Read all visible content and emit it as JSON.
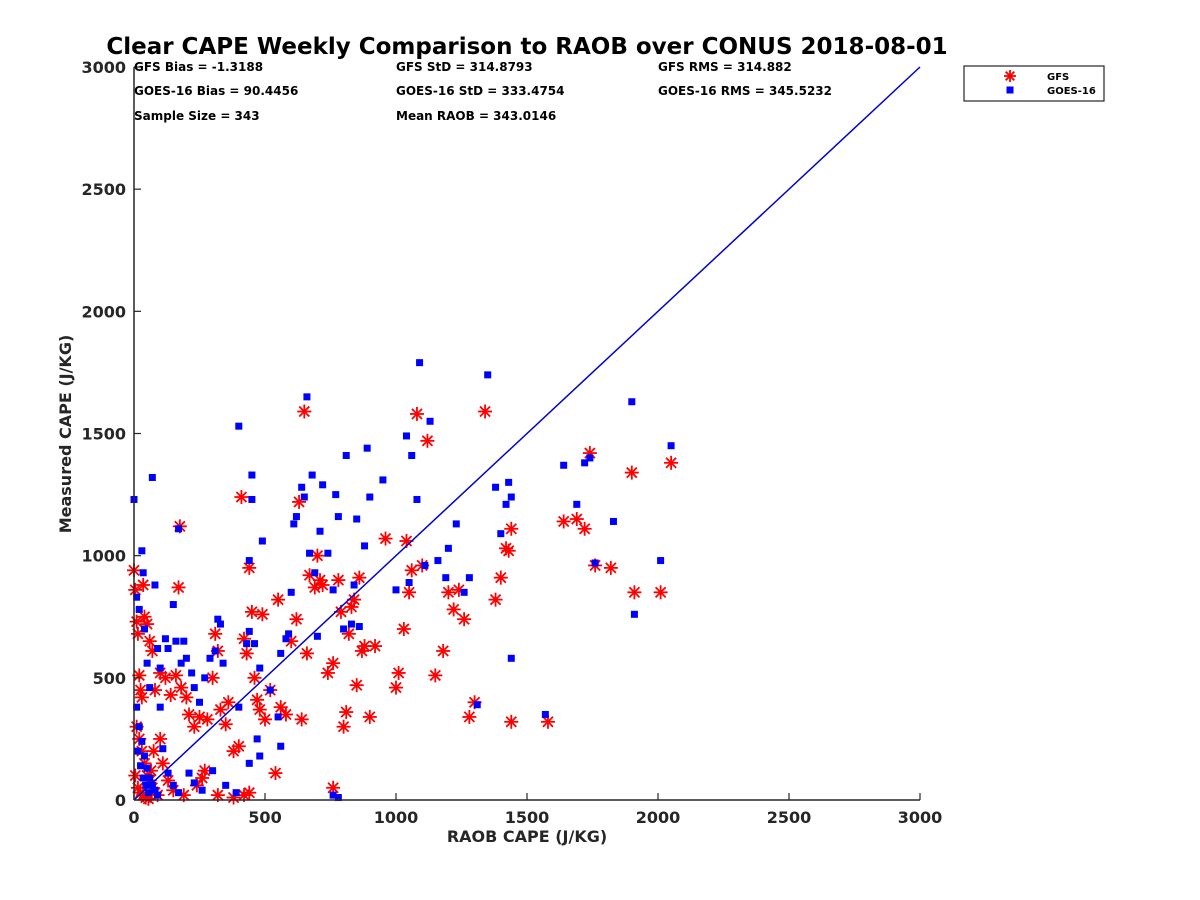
{
  "chart_data": {
    "type": "scatter",
    "title": "Clear CAPE Weekly Comparison to RAOB over CONUS 2018-08-01",
    "xlabel": "RAOB CAPE (J/KG)",
    "ylabel": "Measured CAPE (J/KG)",
    "xlim": [
      0,
      3000
    ],
    "ylim": [
      0,
      3000
    ],
    "xticks": [
      "0",
      "500",
      "1000",
      "1500",
      "2000",
      "2500",
      "3000"
    ],
    "yticks": [
      "0",
      "500",
      "1000",
      "1500",
      "2000",
      "2500",
      "3000"
    ],
    "grid": false,
    "legend_position": "top-right",
    "stats": [
      [
        "GFS Bias = -1.3188",
        "GFS StD = 314.8793",
        "GFS RMS = 314.882"
      ],
      [
        "GOES-16 Bias = 90.4456",
        "GOES-16 StD = 333.4754",
        "GOES-16 RMS = 345.5232"
      ],
      [
        "Sample Size = 343",
        "Mean RAOB = 343.0146",
        ""
      ]
    ],
    "reference_line": {
      "x": [
        0,
        3000
      ],
      "y": [
        0,
        3000
      ],
      "color": "#0000cc"
    },
    "series": [
      {
        "name": "GFS",
        "marker": "asterisk",
        "color": "#ff0000",
        "points": [
          [
            0,
            940
          ],
          [
            5,
            860
          ],
          [
            10,
            730
          ],
          [
            15,
            680
          ],
          [
            20,
            510
          ],
          [
            25,
            450
          ],
          [
            30,
            420
          ],
          [
            35,
            880
          ],
          [
            40,
            750
          ],
          [
            50,
            720
          ],
          [
            60,
            650
          ],
          [
            70,
            610
          ],
          [
            80,
            450
          ],
          [
            100,
            520
          ],
          [
            120,
            500
          ],
          [
            140,
            430
          ],
          [
            160,
            510
          ],
          [
            170,
            870
          ],
          [
            175,
            1120
          ],
          [
            180,
            460
          ],
          [
            200,
            420
          ],
          [
            210,
            350
          ],
          [
            230,
            300
          ],
          [
            250,
            340
          ],
          [
            270,
            120
          ],
          [
            280,
            330
          ],
          [
            300,
            500
          ],
          [
            310,
            680
          ],
          [
            320,
            610
          ],
          [
            330,
            370
          ],
          [
            350,
            310
          ],
          [
            360,
            400
          ],
          [
            380,
            200
          ],
          [
            400,
            220
          ],
          [
            410,
            1240
          ],
          [
            420,
            660
          ],
          [
            430,
            600
          ],
          [
            440,
            950
          ],
          [
            450,
            770
          ],
          [
            460,
            500
          ],
          [
            470,
            410
          ],
          [
            480,
            370
          ],
          [
            490,
            760
          ],
          [
            500,
            330
          ],
          [
            520,
            450
          ],
          [
            540,
            110
          ],
          [
            550,
            820
          ],
          [
            560,
            380
          ],
          [
            580,
            350
          ],
          [
            600,
            650
          ],
          [
            620,
            740
          ],
          [
            630,
            1220
          ],
          [
            640,
            330
          ],
          [
            650,
            1590
          ],
          [
            660,
            600
          ],
          [
            670,
            920
          ],
          [
            690,
            870
          ],
          [
            700,
            1000
          ],
          [
            710,
            900
          ],
          [
            720,
            880
          ],
          [
            740,
            520
          ],
          [
            760,
            560
          ],
          [
            780,
            900
          ],
          [
            790,
            770
          ],
          [
            800,
            300
          ],
          [
            810,
            360
          ],
          [
            820,
            680
          ],
          [
            830,
            790
          ],
          [
            840,
            820
          ],
          [
            850,
            470
          ],
          [
            860,
            910
          ],
          [
            870,
            610
          ],
          [
            880,
            630
          ],
          [
            900,
            340
          ],
          [
            920,
            630
          ],
          [
            960,
            1070
          ],
          [
            1000,
            460
          ],
          [
            1010,
            520
          ],
          [
            1030,
            700
          ],
          [
            1040,
            1060
          ],
          [
            1050,
            850
          ],
          [
            1060,
            940
          ],
          [
            1080,
            1580
          ],
          [
            1100,
            960
          ],
          [
            1120,
            1470
          ],
          [
            1150,
            510
          ],
          [
            1180,
            610
          ],
          [
            1200,
            850
          ],
          [
            1220,
            780
          ],
          [
            1240,
            860
          ],
          [
            1260,
            740
          ],
          [
            1280,
            340
          ],
          [
            1300,
            400
          ],
          [
            1340,
            1590
          ],
          [
            1380,
            820
          ],
          [
            1400,
            910
          ],
          [
            1420,
            1030
          ],
          [
            1430,
            1020
          ],
          [
            1440,
            1110
          ],
          [
            1440,
            320
          ],
          [
            1580,
            320
          ],
          [
            1640,
            1140
          ],
          [
            1690,
            1150
          ],
          [
            1720,
            1110
          ],
          [
            1740,
            1420
          ],
          [
            1760,
            960
          ],
          [
            1820,
            950
          ],
          [
            1900,
            1340
          ],
          [
            1910,
            850
          ],
          [
            2010,
            850
          ],
          [
            2050,
            1380
          ],
          [
            10,
            300
          ],
          [
            20,
            250
          ],
          [
            30,
            200
          ],
          [
            40,
            150
          ],
          [
            50,
            100
          ],
          [
            60,
            80
          ],
          [
            70,
            50
          ],
          [
            80,
            30
          ],
          [
            90,
            20
          ],
          [
            100,
            250
          ],
          [
            110,
            150
          ],
          [
            130,
            80
          ],
          [
            150,
            40
          ],
          [
            190,
            20
          ],
          [
            240,
            60
          ],
          [
            260,
            90
          ],
          [
            320,
            20
          ],
          [
            380,
            10
          ],
          [
            420,
            20
          ],
          [
            440,
            30
          ],
          [
            760,
            50
          ],
          [
            5,
            100
          ],
          [
            15,
            50
          ],
          [
            25,
            30
          ],
          [
            35,
            20
          ],
          [
            45,
            10
          ],
          [
            55,
            5
          ],
          [
            65,
            120
          ],
          [
            75,
            200
          ]
        ]
      },
      {
        "name": "GOES-16",
        "marker": "square",
        "color": "#0000ff",
        "points": [
          [
            0,
            1230
          ],
          [
            10,
            830
          ],
          [
            20,
            780
          ],
          [
            30,
            1020
          ],
          [
            35,
            930
          ],
          [
            40,
            700
          ],
          [
            50,
            560
          ],
          [
            60,
            460
          ],
          [
            70,
            1320
          ],
          [
            80,
            880
          ],
          [
            90,
            620
          ],
          [
            100,
            540
          ],
          [
            120,
            660
          ],
          [
            130,
            620
          ],
          [
            150,
            800
          ],
          [
            160,
            650
          ],
          [
            170,
            1110
          ],
          [
            180,
            560
          ],
          [
            190,
            650
          ],
          [
            200,
            580
          ],
          [
            220,
            520
          ],
          [
            230,
            460
          ],
          [
            250,
            400
          ],
          [
            270,
            500
          ],
          [
            290,
            580
          ],
          [
            310,
            610
          ],
          [
            320,
            740
          ],
          [
            330,
            720
          ],
          [
            340,
            560
          ],
          [
            400,
            380
          ],
          [
            400,
            1530
          ],
          [
            430,
            640
          ],
          [
            440,
            690
          ],
          [
            440,
            980
          ],
          [
            450,
            1230
          ],
          [
            450,
            1330
          ],
          [
            460,
            640
          ],
          [
            480,
            540
          ],
          [
            490,
            1060
          ],
          [
            520,
            450
          ],
          [
            550,
            340
          ],
          [
            560,
            600
          ],
          [
            580,
            660
          ],
          [
            590,
            680
          ],
          [
            600,
            850
          ],
          [
            610,
            1130
          ],
          [
            620,
            1160
          ],
          [
            640,
            1280
          ],
          [
            650,
            1240
          ],
          [
            660,
            1650
          ],
          [
            670,
            1010
          ],
          [
            680,
            1330
          ],
          [
            690,
            930
          ],
          [
            700,
            670
          ],
          [
            710,
            1100
          ],
          [
            720,
            1290
          ],
          [
            740,
            1010
          ],
          [
            760,
            860
          ],
          [
            770,
            1250
          ],
          [
            780,
            1160
          ],
          [
            800,
            700
          ],
          [
            810,
            1410
          ],
          [
            830,
            720
          ],
          [
            840,
            880
          ],
          [
            850,
            1150
          ],
          [
            860,
            710
          ],
          [
            880,
            1040
          ],
          [
            890,
            1440
          ],
          [
            900,
            1240
          ],
          [
            950,
            1310
          ],
          [
            1000,
            860
          ],
          [
            1040,
            1490
          ],
          [
            1050,
            890
          ],
          [
            1060,
            1410
          ],
          [
            1080,
            1230
          ],
          [
            1090,
            1790
          ],
          [
            1110,
            960
          ],
          [
            1130,
            1550
          ],
          [
            1160,
            980
          ],
          [
            1190,
            910
          ],
          [
            1200,
            1030
          ],
          [
            1230,
            1130
          ],
          [
            1260,
            850
          ],
          [
            1280,
            910
          ],
          [
            1310,
            390
          ],
          [
            1350,
            1740
          ],
          [
            1380,
            1280
          ],
          [
            1400,
            1090
          ],
          [
            1420,
            1210
          ],
          [
            1430,
            1300
          ],
          [
            1440,
            1240
          ],
          [
            1440,
            580
          ],
          [
            1570,
            350
          ],
          [
            1640,
            1370
          ],
          [
            1690,
            1210
          ],
          [
            1720,
            1380
          ],
          [
            1740,
            1400
          ],
          [
            1760,
            970
          ],
          [
            1830,
            1140
          ],
          [
            1900,
            1630
          ],
          [
            1910,
            760
          ],
          [
            2010,
            980
          ],
          [
            2050,
            1450
          ],
          [
            10,
            380
          ],
          [
            20,
            300
          ],
          [
            30,
            240
          ],
          [
            40,
            180
          ],
          [
            50,
            130
          ],
          [
            60,
            90
          ],
          [
            70,
            60
          ],
          [
            80,
            40
          ],
          [
            90,
            20
          ],
          [
            100,
            380
          ],
          [
            110,
            210
          ],
          [
            130,
            110
          ],
          [
            150,
            60
          ],
          [
            170,
            30
          ],
          [
            210,
            110
          ],
          [
            230,
            70
          ],
          [
            260,
            40
          ],
          [
            300,
            120
          ],
          [
            350,
            60
          ],
          [
            390,
            30
          ],
          [
            440,
            150
          ],
          [
            470,
            250
          ],
          [
            480,
            180
          ],
          [
            560,
            220
          ],
          [
            760,
            20
          ],
          [
            780,
            10
          ],
          [
            15,
            200
          ],
          [
            25,
            140
          ],
          [
            35,
            90
          ],
          [
            45,
            60
          ],
          [
            55,
            30
          ]
        ]
      }
    ]
  }
}
